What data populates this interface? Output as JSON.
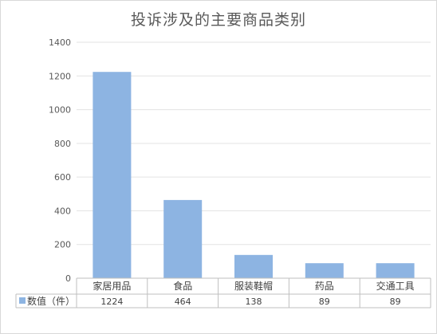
{
  "chart_data": {
    "type": "bar",
    "title": "投诉涉及的主要商品类别",
    "categories": [
      "家居用品",
      "食品",
      "服装鞋帽",
      "药品",
      "交通工具"
    ],
    "series": [
      {
        "name": "数值（件）",
        "values": [
          1224,
          464,
          138,
          89,
          89
        ]
      }
    ],
    "ylim": [
      0,
      1400
    ],
    "yticks": [
      0,
      200,
      400,
      600,
      800,
      1000,
      1200,
      1400
    ],
    "grid": true,
    "legend": "data-table",
    "data_table": true,
    "bar_color": "#8db4e2"
  }
}
